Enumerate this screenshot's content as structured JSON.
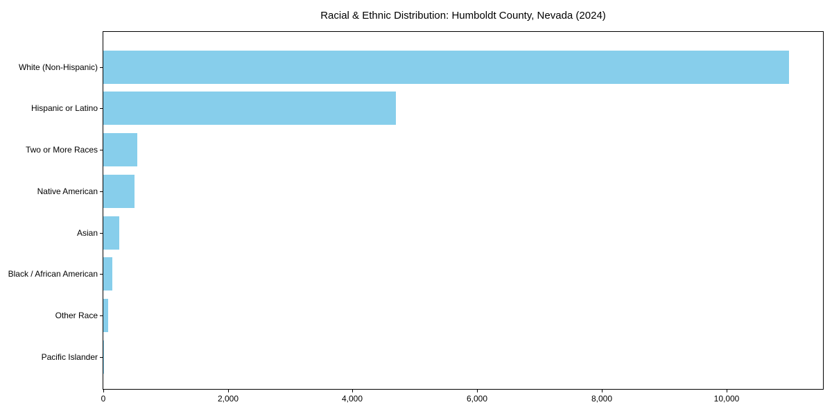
{
  "chart_data": {
    "type": "bar",
    "orientation": "horizontal",
    "title": "Racial & Ethnic Distribution: Humboldt County, Nevada (2024)",
    "categories": [
      "White (Non-Hispanic)",
      "Hispanic or Latino",
      "Two or More Races",
      "Native American",
      "Asian",
      "Black / African American",
      "Other Race",
      "Pacific Islander"
    ],
    "values": [
      11000,
      4700,
      550,
      500,
      260,
      140,
      80,
      15
    ],
    "xlabel": "",
    "ylabel": "",
    "xlim": [
      0,
      11550
    ],
    "xticks": {
      "values": [
        0,
        2000,
        4000,
        6000,
        8000,
        10000
      ],
      "labels": [
        "0",
        "2,000",
        "4,000",
        "6,000",
        "8,000",
        "10,000"
      ]
    },
    "bar_color": "#87CEEB",
    "grid": false,
    "legend_position": "none"
  }
}
